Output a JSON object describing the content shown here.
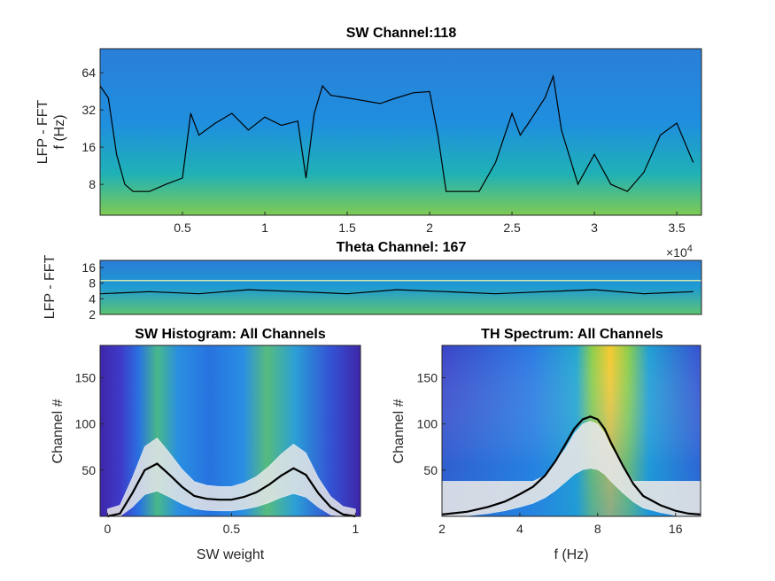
{
  "chart_data": [
    {
      "type": "heatmap",
      "title": "SW Channel:118",
      "ylabel_line1": "LFP - FFT",
      "ylabel_line2": "f (Hz)",
      "x_ticks": [
        0.5,
        1,
        1.5,
        2,
        2.5,
        3,
        3.5
      ],
      "x_tick_labels": [
        "0.5",
        "1",
        "1.5",
        "2",
        "2.5",
        "3",
        "3.5"
      ],
      "x_exponent_label": "×10",
      "x_exponent_power": "4",
      "xlim": [
        0,
        3.65
      ],
      "y_scale": "log2",
      "y_ticks": [
        8,
        16,
        32,
        64
      ],
      "y_tick_labels": [
        "8",
        "16",
        "32",
        "64"
      ],
      "ylim": [
        4.5,
        100
      ],
      "series": [
        {
          "name": "",
          "color": "#000000",
          "x": [
            0.0,
            0.05,
            0.1,
            0.15,
            0.2,
            0.3,
            0.4,
            0.5,
            0.55,
            0.6,
            0.7,
            0.8,
            0.9,
            1.0,
            1.1,
            1.2,
            1.25,
            1.3,
            1.35,
            1.4,
            1.5,
            1.6,
            1.7,
            1.8,
            1.9,
            2.0,
            2.05,
            2.1,
            2.2,
            2.3,
            2.4,
            2.5,
            2.55,
            2.6,
            2.7,
            2.75,
            2.8,
            2.9,
            3.0,
            3.1,
            3.2,
            3.3,
            3.4,
            3.5,
            3.6
          ],
          "y": [
            50,
            40,
            14,
            8,
            7,
            7,
            8,
            9,
            30,
            20,
            25,
            30,
            22,
            28,
            24,
            26,
            9,
            30,
            50,
            42,
            40,
            38,
            36,
            40,
            44,
            45,
            20,
            7,
            7,
            7,
            12,
            30,
            20,
            25,
            40,
            60,
            22,
            8,
            14,
            8,
            7,
            10,
            20,
            25,
            12
          ]
        }
      ],
      "colormap": [
        "#3e26a8",
        "#1f8fde",
        "#1bbca6",
        "#8ccd4a",
        "#f9d72e"
      ]
    },
    {
      "type": "heatmap",
      "title": "Theta Channel: 167",
      "ylabel": "LFP - FFT",
      "y_scale": "log2",
      "y_ticks": [
        2,
        4,
        8,
        16
      ],
      "y_tick_labels": [
        "2",
        "4",
        "8",
        "16"
      ],
      "ylim": [
        2,
        22
      ],
      "xlim": [
        0,
        3.65
      ],
      "threshold_y": 9,
      "threshold_color": "#f5f5b0",
      "series": [
        {
          "name": "",
          "color": "#000000",
          "x": [
            0.0,
            0.3,
            0.6,
            0.9,
            1.2,
            1.5,
            1.8,
            2.1,
            2.4,
            2.7,
            3.0,
            3.3,
            3.6
          ],
          "y": [
            5,
            5.5,
            5,
            6,
            5.5,
            5,
            6,
            5.5,
            5,
            5.5,
            6,
            5,
            5.5
          ]
        }
      ]
    },
    {
      "type": "heatmap",
      "title": "SW Histogram: All Channels",
      "xlabel": "SW weight",
      "ylabel": "Channel #",
      "x_ticks": [
        0,
        0.5,
        1
      ],
      "x_tick_labels": [
        "0",
        "0.5",
        "1"
      ],
      "xlim": [
        -0.03,
        1.02
      ],
      "y_ticks": [
        50,
        100,
        150
      ],
      "y_tick_labels": [
        "50",
        "100",
        "150"
      ],
      "ylim": [
        0,
        185
      ],
      "series": [
        {
          "name": "",
          "color": "#000000",
          "x": [
            0.0,
            0.05,
            0.1,
            0.15,
            0.2,
            0.25,
            0.3,
            0.35,
            0.4,
            0.45,
            0.5,
            0.55,
            0.6,
            0.65,
            0.7,
            0.75,
            0.8,
            0.85,
            0.9,
            0.95,
            1.0
          ],
          "y": [
            0,
            3,
            25,
            50,
            57,
            45,
            32,
            22,
            19,
            18,
            18,
            21,
            26,
            34,
            44,
            52,
            45,
            25,
            10,
            2,
            0
          ]
        }
      ]
    },
    {
      "type": "heatmap",
      "title": "TH Spectrum: All Channels",
      "xlabel": "f (Hz)",
      "ylabel": "Channel #",
      "x_scale": "log2",
      "x_ticks": [
        2,
        4,
        8,
        16
      ],
      "x_tick_labels": [
        "2",
        "4",
        "8",
        "16"
      ],
      "xlim": [
        2,
        20
      ],
      "y_ticks": [
        50,
        100,
        150
      ],
      "y_tick_labels": [
        "50",
        "100",
        "150"
      ],
      "ylim": [
        0,
        185
      ],
      "series": [
        {
          "name": "",
          "color": "#000000",
          "x": [
            2,
            2.5,
            3,
            3.5,
            4,
            4.5,
            5,
            5.5,
            6,
            6.5,
            7,
            7.5,
            8,
            8.5,
            9,
            10,
            11,
            12,
            14,
            16,
            18,
            20
          ],
          "y": [
            2,
            5,
            10,
            16,
            24,
            32,
            44,
            60,
            78,
            95,
            105,
            108,
            105,
            95,
            80,
            55,
            35,
            22,
            12,
            6,
            3,
            2
          ]
        }
      ]
    }
  ]
}
